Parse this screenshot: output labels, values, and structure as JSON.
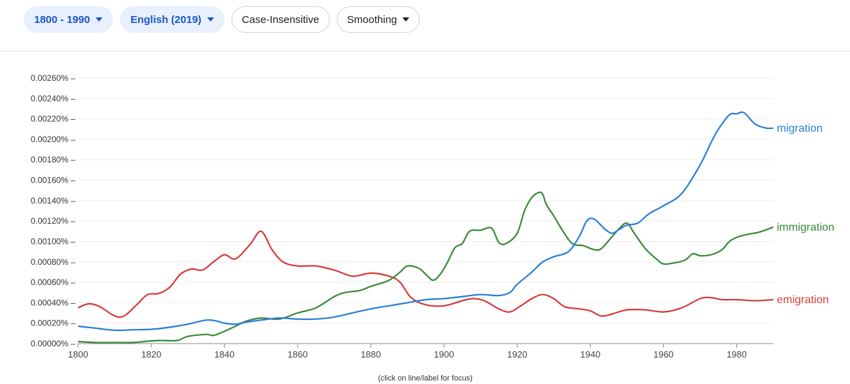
{
  "toolbar": {
    "year_range": "1800 - 1990",
    "corpus": "English (2019)",
    "case": "Case-Insensitive",
    "smoothing": "Smoothing"
  },
  "colors": {
    "migration": "#2a7ed8",
    "immigration": "#3a8a3a",
    "emigration": "#d63c3c",
    "grid": "#eeeeee",
    "axis": "#888888"
  },
  "chart_data": {
    "type": "line",
    "title": "",
    "xlabel": "",
    "ylabel": "",
    "xlim": [
      1800,
      1990
    ],
    "ylim": [
      0,
      0.0027
    ],
    "grid": true,
    "legend": "labels at line ends (right)",
    "x_ticks": [
      "1800",
      "1820",
      "1840",
      "1860",
      "1880",
      "1900",
      "1920",
      "1940",
      "1960",
      "1980"
    ],
    "y_ticks": [
      "0.00000%",
      "0.00020%",
      "0.00040%",
      "0.00060%",
      "0.00080%",
      "0.00100%",
      "0.00120%",
      "0.00140%",
      "0.00160%",
      "0.00180%",
      "0.00200%",
      "0.00220%",
      "0.00240%",
      "0.00260%"
    ],
    "footnote": "(click on line/label for focus)",
    "series": [
      {
        "name": "migration",
        "color": "#2a7ed8",
        "points": [
          [
            1800,
            0.00017
          ],
          [
            1805,
            0.00015
          ],
          [
            1810,
            0.00013
          ],
          [
            1815,
            0.000135
          ],
          [
            1820,
            0.00014
          ],
          [
            1825,
            0.00016
          ],
          [
            1830,
            0.00019
          ],
          [
            1835,
            0.00023
          ],
          [
            1838,
            0.00022
          ],
          [
            1840,
            0.0002
          ],
          [
            1843,
            0.00019
          ],
          [
            1846,
            0.00021
          ],
          [
            1850,
            0.00023
          ],
          [
            1855,
            0.00025
          ],
          [
            1860,
            0.00024
          ],
          [
            1865,
            0.00024
          ],
          [
            1870,
            0.00026
          ],
          [
            1875,
            0.0003
          ],
          [
            1880,
            0.00034
          ],
          [
            1885,
            0.00037
          ],
          [
            1890,
            0.0004
          ],
          [
            1895,
            0.00043
          ],
          [
            1900,
            0.00044
          ],
          [
            1905,
            0.00046
          ],
          [
            1910,
            0.00048
          ],
          [
            1915,
            0.00047
          ],
          [
            1918,
            0.0005
          ],
          [
            1920,
            0.00058
          ],
          [
            1924,
            0.0007
          ],
          [
            1927,
            0.0008
          ],
          [
            1930,
            0.00085
          ],
          [
            1934,
            0.0009
          ],
          [
            1937,
            0.00105
          ],
          [
            1939,
            0.0012
          ],
          [
            1941,
            0.00122
          ],
          [
            1944,
            0.00112
          ],
          [
            1946,
            0.00108
          ],
          [
            1948,
            0.00112
          ],
          [
            1950,
            0.00116
          ],
          [
            1953,
            0.00118
          ],
          [
            1956,
            0.00127
          ],
          [
            1960,
            0.00135
          ],
          [
            1965,
            0.00147
          ],
          [
            1970,
            0.00175
          ],
          [
            1973,
            0.00197
          ],
          [
            1975,
            0.0021
          ],
          [
            1978,
            0.00224
          ],
          [
            1980,
            0.00225
          ],
          [
            1982,
            0.00226
          ],
          [
            1985,
            0.00215
          ],
          [
            1988,
            0.00211
          ],
          [
            1990,
            0.00211
          ]
        ]
      },
      {
        "name": "immigration",
        "color": "#3a8a3a",
        "points": [
          [
            1800,
            2e-05
          ],
          [
            1805,
            1e-05
          ],
          [
            1810,
            1e-05
          ],
          [
            1815,
            1e-05
          ],
          [
            1818,
            2e-05
          ],
          [
            1822,
            3e-05
          ],
          [
            1827,
            3e-05
          ],
          [
            1830,
            7e-05
          ],
          [
            1835,
            9e-05
          ],
          [
            1837,
            8e-05
          ],
          [
            1840,
            0.00012
          ],
          [
            1843,
            0.00017
          ],
          [
            1846,
            0.00022
          ],
          [
            1850,
            0.00025
          ],
          [
            1855,
            0.00024
          ],
          [
            1860,
            0.0003
          ],
          [
            1865,
            0.00035
          ],
          [
            1870,
            0.00046
          ],
          [
            1873,
            0.0005
          ],
          [
            1877,
            0.00052
          ],
          [
            1880,
            0.00056
          ],
          [
            1885,
            0.00062
          ],
          [
            1888,
            0.0007
          ],
          [
            1890,
            0.00076
          ],
          [
            1893,
            0.00074
          ],
          [
            1895,
            0.00068
          ],
          [
            1897,
            0.00062
          ],
          [
            1899,
            0.00068
          ],
          [
            1901,
            0.0008
          ],
          [
            1903,
            0.00094
          ],
          [
            1905,
            0.00098
          ],
          [
            1907,
            0.0011
          ],
          [
            1910,
            0.00111
          ],
          [
            1913,
            0.00113
          ],
          [
            1915,
            0.00099
          ],
          [
            1917,
            0.00098
          ],
          [
            1920,
            0.00108
          ],
          [
            1922,
            0.0013
          ],
          [
            1924,
            0.00143
          ],
          [
            1926,
            0.00148
          ],
          [
            1927,
            0.00146
          ],
          [
            1928,
            0.00136
          ],
          [
            1930,
            0.00125
          ],
          [
            1932,
            0.00113
          ],
          [
            1935,
            0.00098
          ],
          [
            1938,
            0.00096
          ],
          [
            1941,
            0.00092
          ],
          [
            1943,
            0.00093
          ],
          [
            1946,
            0.00105
          ],
          [
            1948,
            0.00113
          ],
          [
            1950,
            0.00118
          ],
          [
            1952,
            0.00108
          ],
          [
            1955,
            0.00093
          ],
          [
            1958,
            0.00083
          ],
          [
            1960,
            0.00078
          ],
          [
            1963,
            0.00079
          ],
          [
            1966,
            0.00082
          ],
          [
            1968,
            0.00088
          ],
          [
            1970,
            0.00086
          ],
          [
            1973,
            0.00087
          ],
          [
            1976,
            0.00092
          ],
          [
            1978,
            0.001
          ],
          [
            1980,
            0.00104
          ],
          [
            1983,
            0.00107
          ],
          [
            1986,
            0.00109
          ],
          [
            1990,
            0.00114
          ]
        ]
      },
      {
        "name": "emigration",
        "color": "#d63c3c",
        "points": [
          [
            1800,
            0.00035
          ],
          [
            1803,
            0.00039
          ],
          [
            1806,
            0.00036
          ],
          [
            1809,
            0.00029
          ],
          [
            1811,
            0.00026
          ],
          [
            1813,
            0.00028
          ],
          [
            1816,
            0.00038
          ],
          [
            1819,
            0.00048
          ],
          [
            1822,
            0.00049
          ],
          [
            1825,
            0.00055
          ],
          [
            1828,
            0.00068
          ],
          [
            1831,
            0.00073
          ],
          [
            1834,
            0.00072
          ],
          [
            1837,
            0.0008
          ],
          [
            1840,
            0.00087
          ],
          [
            1843,
            0.00083
          ],
          [
            1847,
            0.00097
          ],
          [
            1850,
            0.0011
          ],
          [
            1853,
            0.00092
          ],
          [
            1856,
            0.0008
          ],
          [
            1860,
            0.00076
          ],
          [
            1865,
            0.00076
          ],
          [
            1870,
            0.00072
          ],
          [
            1875,
            0.00066
          ],
          [
            1880,
            0.00069
          ],
          [
            1885,
            0.00066
          ],
          [
            1888,
            0.0006
          ],
          [
            1891,
            0.00045
          ],
          [
            1895,
            0.00038
          ],
          [
            1900,
            0.00037
          ],
          [
            1905,
            0.00042
          ],
          [
            1908,
            0.00044
          ],
          [
            1911,
            0.00042
          ],
          [
            1915,
            0.00034
          ],
          [
            1918,
            0.00031
          ],
          [
            1921,
            0.00037
          ],
          [
            1924,
            0.00044
          ],
          [
            1927,
            0.00048
          ],
          [
            1930,
            0.00044
          ],
          [
            1933,
            0.00036
          ],
          [
            1937,
            0.00034
          ],
          [
            1940,
            0.00032
          ],
          [
            1943,
            0.00027
          ],
          [
            1946,
            0.00029
          ],
          [
            1950,
            0.00033
          ],
          [
            1955,
            0.00033
          ],
          [
            1960,
            0.00031
          ],
          [
            1965,
            0.00035
          ],
          [
            1970,
            0.00044
          ],
          [
            1973,
            0.00045
          ],
          [
            1976,
            0.00043
          ],
          [
            1980,
            0.00043
          ],
          [
            1985,
            0.00042
          ],
          [
            1990,
            0.00043
          ]
        ]
      }
    ]
  }
}
